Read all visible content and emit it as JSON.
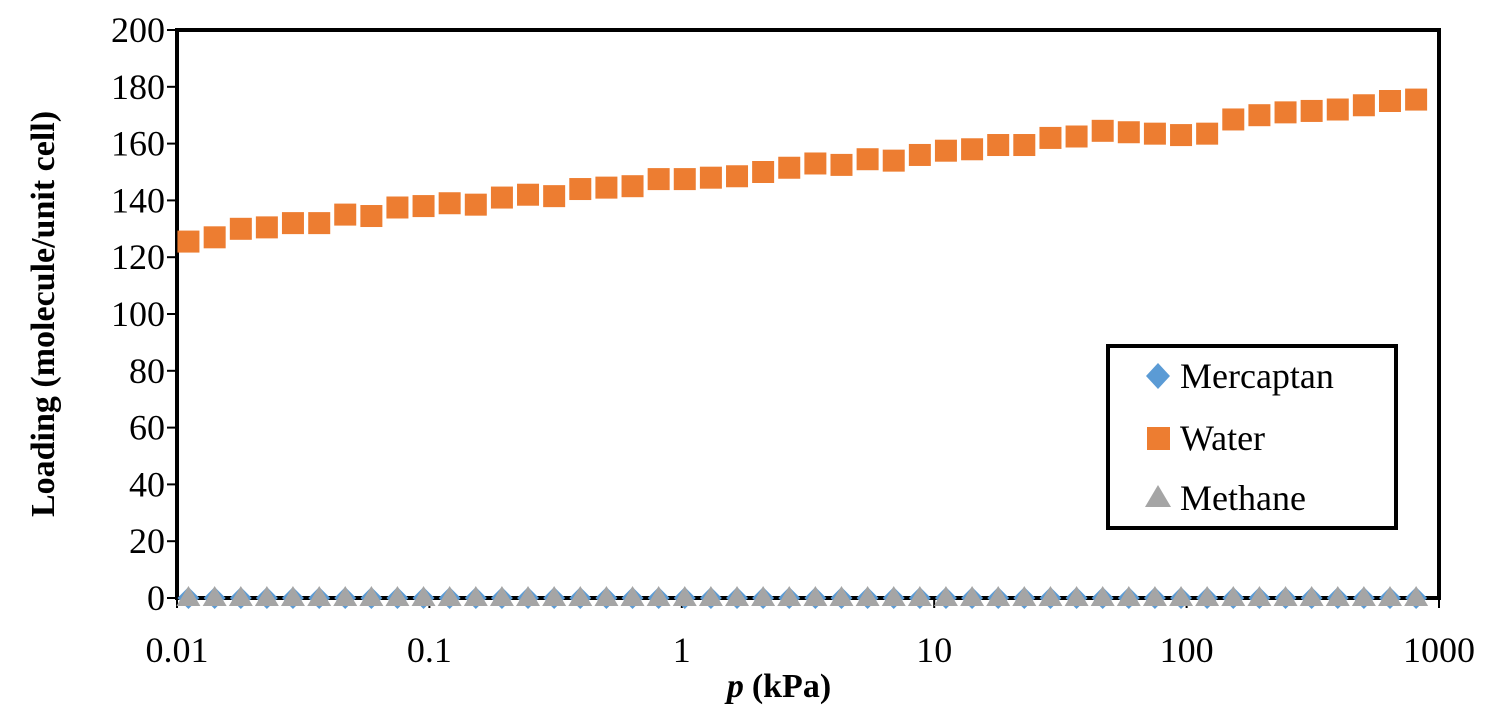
{
  "chart_data": {
    "type": "scatter",
    "title": "",
    "xlabel": "p (kPa)",
    "xlabel_parts": {
      "var": "p",
      "unit": "(kPa)"
    },
    "ylabel": "Loading (molecule/unit cell)",
    "xscale": "log",
    "xlim": [
      0.01,
      1000
    ],
    "ylim": [
      0,
      200
    ],
    "xticks": [
      "0.01",
      "0.1",
      "1",
      "10",
      "100",
      "1000"
    ],
    "yticks": [
      "0",
      "20",
      "40",
      "60",
      "80",
      "100",
      "120",
      "140",
      "160",
      "180",
      "200"
    ],
    "grid": false,
    "legend_position": "bottom-right",
    "x": [
      0.0111,
      0.0141,
      0.0179,
      0.0227,
      0.0288,
      0.0366,
      0.0464,
      0.0589,
      0.0747,
      0.0948,
      0.1203,
      0.1527,
      0.1938,
      0.2459,
      0.3121,
      0.3961,
      0.5027,
      0.638,
      0.8096,
      1.0274,
      1.304,
      1.655,
      2.1,
      2.665,
      3.382,
      4.292,
      5.447,
      6.913,
      8.773,
      11.13,
      14.13,
      17.93,
      22.75,
      28.88,
      36.65,
      46.51,
      59.02,
      74.9,
      95.06,
      120.6,
      153.1,
      194.3,
      246.6,
      312.9,
      397.1,
      503.9,
      639.5,
      811.6
    ],
    "series": [
      {
        "name": "Mercaptan",
        "marker": "diamond",
        "color": "#5B9BD5",
        "values": [
          0,
          0,
          0,
          0,
          0,
          0,
          0,
          0,
          0,
          0,
          0,
          0,
          0,
          0,
          0,
          0,
          0,
          0,
          0,
          0,
          0,
          0,
          0,
          0,
          0,
          0,
          0,
          0,
          0,
          0,
          0,
          0,
          0,
          0,
          0,
          0,
          0,
          0,
          0,
          0,
          0,
          0,
          0,
          0,
          0,
          0,
          0,
          0
        ]
      },
      {
        "name": "Water",
        "marker": "square",
        "color": "#ED7D31",
        "values": [
          125.5,
          127,
          130,
          130.5,
          132,
          132,
          135,
          134.5,
          137.5,
          138,
          139,
          138.5,
          141,
          142,
          141.5,
          144,
          144.5,
          145,
          147.5,
          147.5,
          148,
          148.5,
          150,
          151.5,
          153,
          152.5,
          154.5,
          154,
          156,
          157.5,
          158,
          159.5,
          159.5,
          162,
          162.5,
          164.5,
          164,
          163.5,
          163,
          163.5,
          168.5,
          170,
          171,
          171.5,
          172,
          173.5,
          175,
          175.5
        ]
      },
      {
        "name": "Methane",
        "marker": "triangle",
        "color": "#A5A5A5",
        "values": [
          0,
          0,
          0,
          0,
          0,
          0,
          0,
          0,
          0,
          0,
          0,
          0,
          0,
          0,
          0,
          0,
          0,
          0,
          0,
          0,
          0,
          0,
          0,
          0,
          0,
          0,
          0,
          0,
          0,
          0,
          0,
          0,
          0,
          0,
          0,
          0,
          0,
          0,
          0,
          0,
          0,
          0,
          0,
          0,
          0,
          0,
          0,
          0
        ]
      }
    ]
  }
}
